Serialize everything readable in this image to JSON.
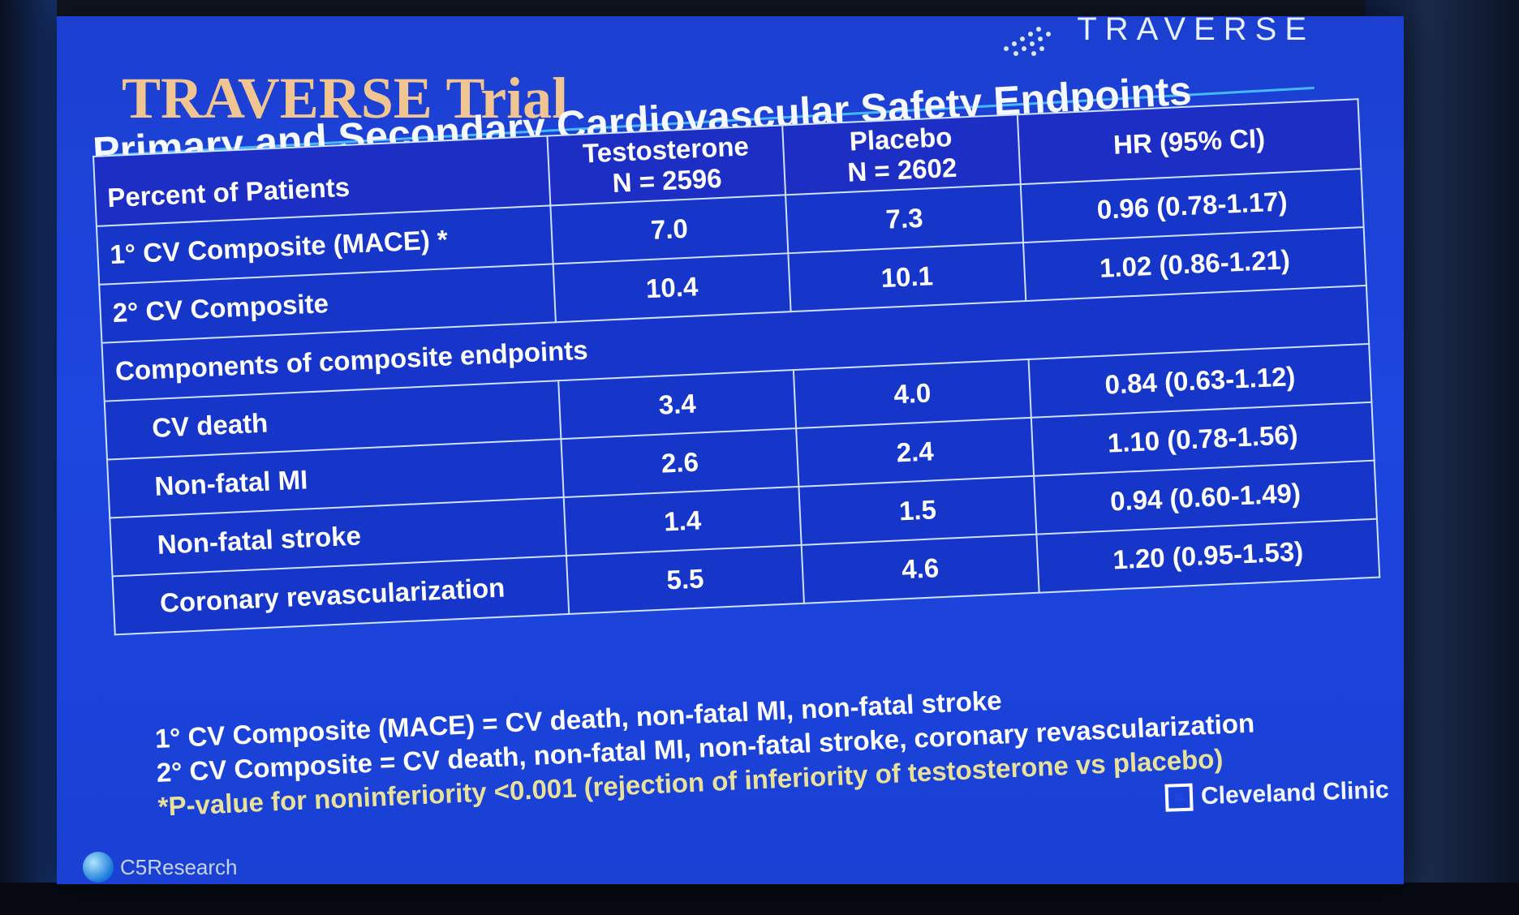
{
  "slide": {
    "brand": "TRAVERSE",
    "title": "TRAVERSE Trial",
    "subtitle": "Primary and Secondary Cardiovascular Safety Endpoints",
    "table": {
      "headers": [
        "Percent of Patients",
        "Testosterone\nN = 2596",
        "Placebo\nN = 2602",
        "HR (95% CI)"
      ],
      "rows": [
        {
          "label": "1° CV Composite (MACE) *",
          "testosterone": "7.0",
          "placebo": "7.3",
          "hr": "0.96 (0.78-1.17)",
          "indent": false
        },
        {
          "label": "2° CV Composite",
          "testosterone": "10.4",
          "placebo": "10.1",
          "hr": "1.02 (0.86-1.21)",
          "indent": false
        },
        {
          "label": "Components of composite endpoints",
          "span": true
        },
        {
          "label": "CV death",
          "testosterone": "3.4",
          "placebo": "4.0",
          "hr": "0.84 (0.63-1.12)",
          "indent": true
        },
        {
          "label": "Non-fatal MI",
          "testosterone": "2.6",
          "placebo": "2.4",
          "hr": "1.10 (0.78-1.56)",
          "indent": true
        },
        {
          "label": "Non-fatal stroke",
          "testosterone": "1.4",
          "placebo": "1.5",
          "hr": "0.94 (0.60-1.49)",
          "indent": true
        },
        {
          "label": "Coronary revascularization",
          "testosterone": "5.5",
          "placebo": "4.6",
          "hr": "1.20 (0.95-1.53)",
          "indent": true
        }
      ]
    },
    "notes": [
      "1° CV Composite (MACE) = CV death, non-fatal MI, non-fatal stroke",
      "2° CV Composite = CV death, non-fatal MI, non-fatal stroke, coronary revascularization"
    ],
    "pvalue_note": "*P-value for noninferiority <0.001 (rejection of inferiority of testosterone vs placebo)",
    "footer_left": "C5Research",
    "footer_right": "Cleveland Clinic"
  }
}
